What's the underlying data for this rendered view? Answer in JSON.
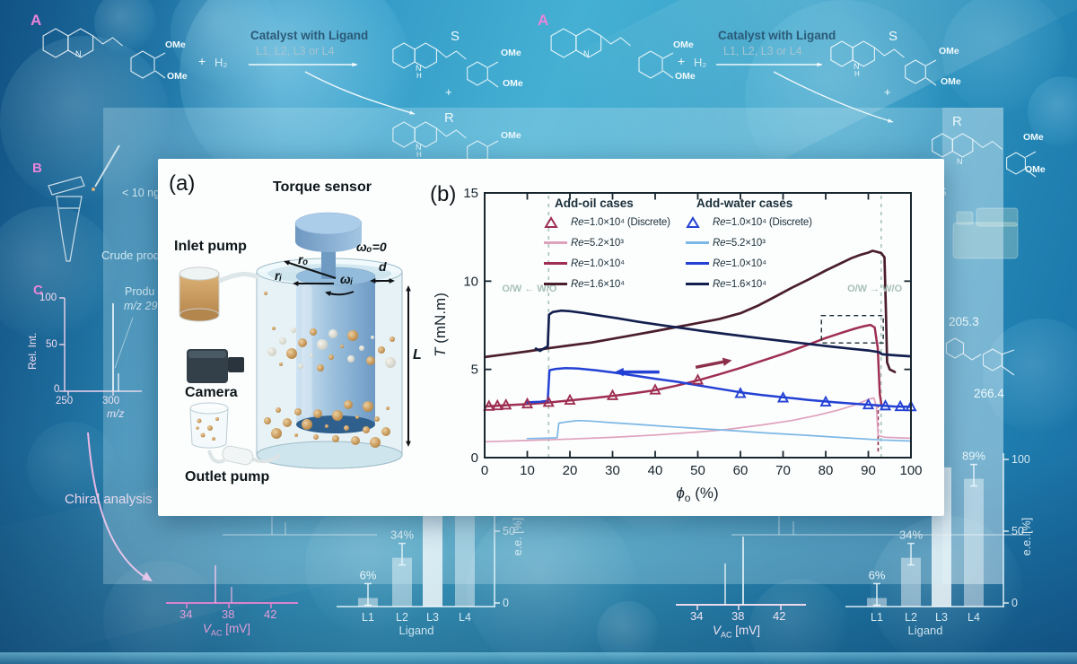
{
  "figure": {
    "panel_a": {
      "tag": "(a)",
      "torque_sensor": "Torque sensor",
      "inlet_pump": "Inlet pump",
      "camera": "Camera",
      "outlet_pump": "Outlet pump",
      "omega_outer": "ωₒ=0",
      "omega_inner": "ωᵢ",
      "r_outer": "rₒ",
      "r_inner": "rᵢ",
      "gap_d": "d",
      "length_l": "L"
    },
    "panel_b": {
      "tag": "(b)"
    }
  },
  "chart_data": [
    {
      "type": "line",
      "title": "",
      "xlabel": "ϕo (%)",
      "ylabel": "T (mN.m)",
      "xlim": [
        0,
        100
      ],
      "ylim": [
        0,
        15
      ],
      "xticks": [
        0,
        10,
        20,
        30,
        40,
        50,
        60,
        70,
        80,
        90,
        100
      ],
      "yticks": [
        0,
        5,
        10,
        15
      ],
      "frame_color": "#18262e",
      "legend": {
        "columns": [
          {
            "header": "Add-oil cases",
            "items": [
              {
                "marker": "triangle",
                "color": "#9e2f52",
                "label": "Re=1.0×10⁴ (Discrete)"
              },
              {
                "marker": "line",
                "color": "#dfa2bd",
                "label": "Re=5.2×10³"
              },
              {
                "marker": "line",
                "color": "#9e2f52",
                "label": "Re=1.0×10⁴"
              },
              {
                "marker": "line",
                "color": "#4a1e2c",
                "label": "Re=1.6×10⁴"
              }
            ]
          },
          {
            "header": "Add-water cases",
            "items": [
              {
                "marker": "triangle",
                "color": "#2341d4",
                "label": "Re=1.0×10⁴ (Discrete)"
              },
              {
                "marker": "line",
                "color": "#7cb8e6",
                "label": "Re=5.2×10³"
              },
              {
                "marker": "line",
                "color": "#2341d4",
                "label": "Re=1.0×10⁴"
              },
              {
                "marker": "line",
                "color": "#13204f",
                "label": "Re=1.6×10⁴"
              }
            ]
          }
        ]
      },
      "series": [
        {
          "name": "Add-oil Re=1.0×10⁴ (Discrete)",
          "color": "#9e2f52",
          "marker": "triangle",
          "line": false,
          "points": [
            [
              1,
              2.9
            ],
            [
              3,
              2.93
            ],
            [
              5,
              2.97
            ],
            [
              10,
              3.03
            ],
            [
              15,
              3.12
            ],
            [
              20,
              3.24
            ],
            [
              30,
              3.5
            ],
            [
              40,
              3.82
            ],
            [
              50,
              4.38
            ]
          ]
        },
        {
          "name": "Add-water Re=1.0×10⁴ (Discrete)",
          "color": "#2341d4",
          "marker": "triangle",
          "line": false,
          "points": [
            [
              60,
              3.62
            ],
            [
              70,
              3.37
            ],
            [
              80,
              3.14
            ],
            [
              90,
              2.98
            ],
            [
              94,
              2.92
            ],
            [
              97.5,
              2.88
            ],
            [
              100,
              2.87
            ]
          ]
        },
        {
          "name": "Add-oil Re=5.2×10³",
          "color": "#dfa2bd",
          "width": 1.7,
          "points": [
            [
              0,
              0.9
            ],
            [
              10,
              0.97
            ],
            [
              20,
              1.05
            ],
            [
              30,
              1.15
            ],
            [
              40,
              1.28
            ],
            [
              50,
              1.45
            ],
            [
              57,
              1.6
            ],
            [
              65,
              1.85
            ],
            [
              72,
              2.1
            ],
            [
              78,
              2.4
            ],
            [
              83,
              2.7
            ],
            [
              87,
              3.0
            ],
            [
              90,
              3.3
            ],
            [
              91.3,
              3.38
            ],
            [
              91.9,
              2.9
            ],
            [
              92.3,
              1.25
            ],
            [
              94,
              1.15
            ],
            [
              100,
              1.1
            ]
          ]
        },
        {
          "name": "Add-water Re=5.2×10³",
          "color": "#7cb8e6",
          "width": 1.7,
          "points": [
            [
              10,
              1.08
            ],
            [
              14,
              1.1
            ],
            [
              17,
              1.13
            ],
            [
              17.4,
              1.95
            ],
            [
              19,
              2.02
            ],
            [
              22,
              2.1
            ],
            [
              25,
              2.07
            ],
            [
              30,
              1.98
            ],
            [
              36,
              1.88
            ],
            [
              43,
              1.76
            ],
            [
              50,
              1.65
            ],
            [
              58,
              1.53
            ],
            [
              66,
              1.4
            ],
            [
              75,
              1.27
            ],
            [
              85,
              1.12
            ],
            [
              93,
              1.0
            ],
            [
              100,
              0.94
            ]
          ]
        },
        {
          "name": "Add-oil Re=1.0×10⁴",
          "color": "#9e2f52",
          "width": 2.5,
          "points": [
            [
              0,
              2.9
            ],
            [
              5,
              2.97
            ],
            [
              10,
              3.03
            ],
            [
              15,
              3.12
            ],
            [
              20,
              3.24
            ],
            [
              25,
              3.36
            ],
            [
              30,
              3.5
            ],
            [
              35,
              3.65
            ],
            [
              40,
              3.82
            ],
            [
              45,
              4.08
            ],
            [
              50,
              4.38
            ],
            [
              55,
              4.72
            ],
            [
              60,
              5.08
            ],
            [
              65,
              5.48
            ],
            [
              70,
              5.88
            ],
            [
              75,
              6.32
            ],
            [
              80,
              6.78
            ],
            [
              84,
              7.1
            ],
            [
              87,
              7.32
            ],
            [
              89,
              7.45
            ],
            [
              90.5,
              7.52
            ],
            [
              91.5,
              7.38
            ],
            [
              92.2,
              6.2
            ],
            [
              92.7,
              3.6
            ],
            [
              93.1,
              2.95
            ]
          ]
        },
        {
          "name": "Add-oil Re=1.6×10⁴",
          "color": "#4a1e2c",
          "width": 2.7,
          "points": [
            [
              0,
              5.7
            ],
            [
              5,
              5.86
            ],
            [
              10,
              6.02
            ],
            [
              15,
              6.2
            ],
            [
              20,
              6.36
            ],
            [
              25,
              6.52
            ],
            [
              30,
              6.73
            ],
            [
              35,
              6.95
            ],
            [
              40,
              7.17
            ],
            [
              45,
              7.4
            ],
            [
              50,
              7.62
            ],
            [
              55,
              7.85
            ],
            [
              60,
              8.18
            ],
            [
              64,
              8.6
            ],
            [
              68,
              9.1
            ],
            [
              72,
              9.62
            ],
            [
              76,
              10.1
            ],
            [
              80,
              10.6
            ],
            [
              83,
              10.95
            ],
            [
              86,
              11.3
            ],
            [
              88,
              11.48
            ],
            [
              90,
              11.62
            ],
            [
              91,
              11.72
            ],
            [
              92,
              11.66
            ],
            [
              93,
              11.6
            ],
            [
              93.8,
              11.35
            ],
            [
              94.1,
              8.5
            ],
            [
              94.4,
              5.4
            ],
            [
              95,
              5.0
            ],
            [
              96.2,
              4.85
            ]
          ]
        },
        {
          "name": "Add-water Re=1.0×10⁴",
          "color": "#2341d4",
          "width": 2.5,
          "points": [
            [
              10,
              3.13
            ],
            [
              13,
              3.17
            ],
            [
              14.8,
              3.22
            ],
            [
              15.2,
              4.95
            ],
            [
              16.5,
              5.02
            ],
            [
              19,
              5.07
            ],
            [
              22,
              5.05
            ],
            [
              26,
              4.95
            ],
            [
              30,
              4.83
            ],
            [
              35,
              4.65
            ],
            [
              40,
              4.47
            ],
            [
              45,
              4.3
            ],
            [
              50,
              4.1
            ],
            [
              55,
              3.9
            ],
            [
              60,
              3.7
            ],
            [
              65,
              3.55
            ],
            [
              70,
              3.42
            ],
            [
              76,
              3.27
            ],
            [
              82,
              3.14
            ],
            [
              88,
              3.03
            ],
            [
              93,
              2.95
            ],
            [
              96,
              2.9
            ],
            [
              100,
              2.88
            ]
          ]
        },
        {
          "name": "Add-water Re=1.6×10⁴",
          "color": "#13204f",
          "width": 2.7,
          "points": [
            [
              12,
              6.18
            ],
            [
              13,
              6.05
            ],
            [
              14,
              6.2
            ],
            [
              14.8,
              6.3
            ],
            [
              15.1,
              8.1
            ],
            [
              16,
              8.25
            ],
            [
              18,
              8.33
            ],
            [
              20,
              8.3
            ],
            [
              23,
              8.2
            ],
            [
              27,
              8.05
            ],
            [
              31,
              7.9
            ],
            [
              36,
              7.7
            ],
            [
              41,
              7.52
            ],
            [
              46,
              7.35
            ],
            [
              51,
              7.18
            ],
            [
              56,
              7.02
            ],
            [
              61,
              6.87
            ],
            [
              66,
              6.72
            ],
            [
              71,
              6.58
            ],
            [
              76,
              6.44
            ],
            [
              81,
              6.3
            ],
            [
              86,
              6.17
            ],
            [
              90,
              6.07
            ],
            [
              92.5,
              5.98
            ],
            [
              93.2,
              5.86
            ],
            [
              96,
              5.8
            ],
            [
              100,
              5.74
            ]
          ]
        }
      ],
      "annotations": {
        "vlines": [
          {
            "x": 15,
            "y1": 0,
            "y2": 15,
            "color": "#a8c4ba",
            "dash": "4 5"
          },
          {
            "x": 93,
            "y1": 0,
            "y2": 15,
            "color": "#a8c4ba",
            "dash": "4 5"
          },
          {
            "x": 92.3,
            "y1": 0.35,
            "y2": 3.0,
            "color": "#8c2f4a",
            "dash": "4 3"
          }
        ],
        "rects": [
          {
            "x1": 79,
            "y1": 6.5,
            "x2": 93.5,
            "y2": 8.05,
            "color": "#1a2a33"
          }
        ],
        "arrows": [
          {
            "x1": 41,
            "y1": 4.85,
            "x2": 30.5,
            "y2": 4.85,
            "color": "#2341d4"
          },
          {
            "x1": 49.5,
            "y1": 5.12,
            "x2": 58,
            "y2": 5.52,
            "color": "#8c2f4a"
          }
        ],
        "texts": [
          {
            "x": 10.5,
            "y": 9.4,
            "text": "O/W ← W/O",
            "color": "#a6c0b6"
          },
          {
            "x": 91.5,
            "y": 9.4,
            "text": "O/W → W/O",
            "color": "#a6c0b6"
          }
        ]
      }
    },
    {
      "type": "bar",
      "categories": [
        "L1",
        "L2",
        "L3",
        "L4"
      ],
      "values": [
        6,
        34,
        null,
        89
      ],
      "value_labels": [
        "6%",
        "34%",
        null,
        "89%"
      ],
      "xlabel": "Ligand",
      "ylabel": "e.e. [%]",
      "yticks": [
        0,
        50,
        100
      ],
      "ytick_labels": [
        "0",
        "50",
        "100"
      ],
      "ylim": [
        0,
        100
      ]
    }
  ],
  "background": {
    "section_a": "A",
    "section_b": "B",
    "section_c": "C",
    "catalyst_line1": "Catalyst with Ligand",
    "catalyst_line2": "L1, L2, L3 or L4",
    "plus": "+",
    "h2": "H₂",
    "ome": "OMe",
    "atom_n": "N",
    "atom_h": "H",
    "s_label": "S",
    "r_label": "R",
    "less_10ng": "< 10 ng",
    "crude_product": "Crude prod",
    "product_line1": "Produ",
    "product_line2": "m/z 29",
    "rel_int": "Rel. Int.",
    "mz_italic": "m/z",
    "ms_y100": "100",
    "ms_y50": "50",
    "ms_y0": "0",
    "ms_x250": "250",
    "ms_x300": "300",
    "chiral_analysis": "Chiral analysis",
    "vac": {
      "v": "V",
      "sub": "AC",
      "unit": " [mV]"
    },
    "vac_t34": "34",
    "vac_t38": "38",
    "vac_t42": "42",
    "mass_205": "205.3",
    "mass_266": "266.4",
    "stray_s": "S"
  }
}
